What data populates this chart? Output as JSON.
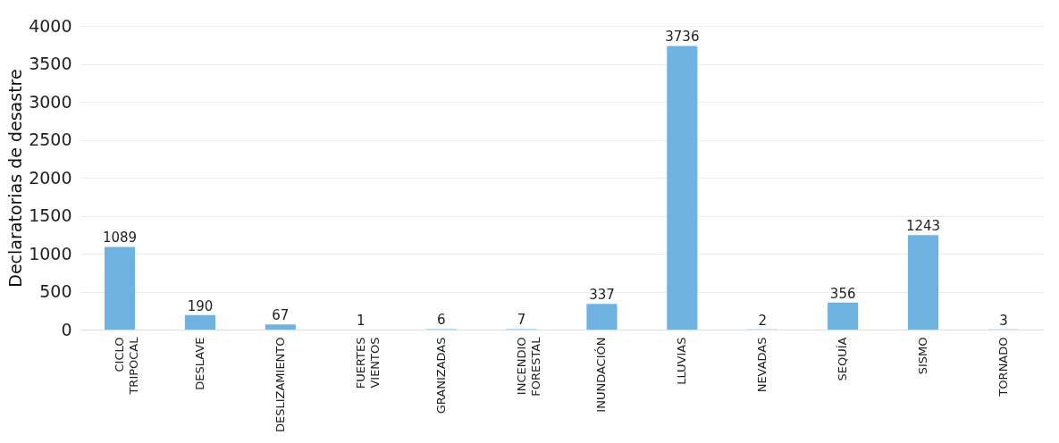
{
  "chart_data": {
    "type": "bar",
    "ylabel": "Declaratorias de desastre",
    "categories": [
      "CICLO\nTRIPOCAL",
      "DESLAVE",
      "DESLIZAMIENTO",
      "FUERTES\nVIENTOS",
      "GRANIZADAS",
      "INCENDIO\nFORESTAL",
      "INUNDACIÓN",
      "LLUVIAS",
      "NEVADAS",
      "SEQUÍA",
      "SISMO",
      "TORNADO"
    ],
    "values": [
      1089,
      190,
      67,
      1,
      6,
      7,
      337,
      3736,
      2,
      356,
      1243,
      3
    ],
    "color": "#6fb3e3",
    "ylim": [
      0,
      4000
    ],
    "yticks": [
      0,
      500,
      1000,
      1500,
      2000,
      2500,
      3000,
      3500,
      4000
    ],
    "grid": "y",
    "data_labels": true
  }
}
